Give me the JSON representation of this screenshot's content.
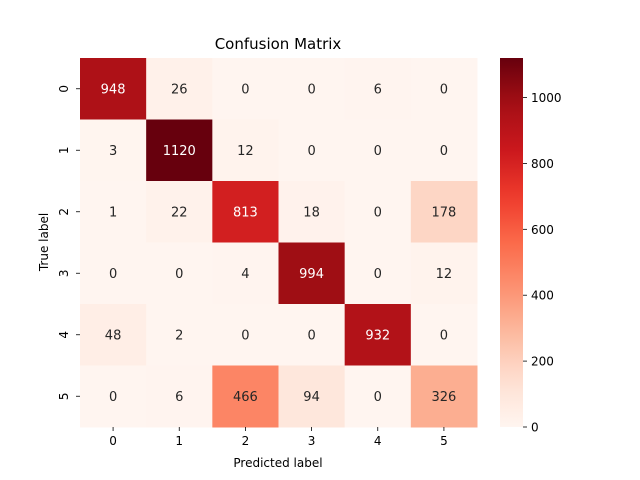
{
  "chart_data": {
    "type": "heatmap",
    "title": "Confusion Matrix",
    "xlabel": "Predicted label",
    "ylabel": "True label",
    "x_categories": [
      "0",
      "1",
      "2",
      "3",
      "4",
      "5"
    ],
    "y_categories": [
      "0",
      "1",
      "2",
      "3",
      "4",
      "5"
    ],
    "matrix": [
      [
        948,
        26,
        0,
        0,
        6,
        0
      ],
      [
        3,
        1120,
        12,
        0,
        0,
        0
      ],
      [
        1,
        22,
        813,
        18,
        0,
        178
      ],
      [
        0,
        0,
        4,
        994,
        0,
        12
      ],
      [
        48,
        2,
        0,
        0,
        932,
        0
      ],
      [
        0,
        6,
        466,
        94,
        0,
        326
      ]
    ],
    "colormap": "Reds",
    "colorbar": {
      "range": [
        0,
        1120
      ],
      "ticks": [
        0,
        200,
        400,
        600,
        800,
        1000
      ]
    },
    "grid": false,
    "legend": "colorbar-right"
  }
}
